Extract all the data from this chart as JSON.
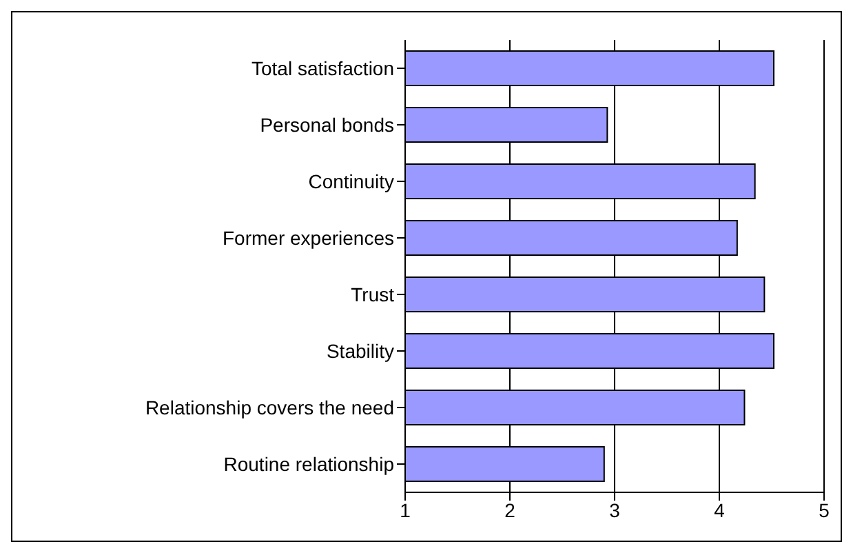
{
  "chart_data": {
    "type": "bar",
    "orientation": "horizontal",
    "categories": [
      "Total satisfaction",
      "Personal bonds",
      "Continuity",
      "Former experiences",
      "Trust",
      "Stability",
      "Relationship covers the need",
      "Routine relationship"
    ],
    "values": [
      4.52,
      2.93,
      4.34,
      4.17,
      4.43,
      4.52,
      4.24,
      2.9
    ],
    "color": "#9999ff",
    "xlim": [
      1,
      5
    ],
    "xticks": [
      1,
      2,
      3,
      4,
      5
    ],
    "grid": "x"
  }
}
